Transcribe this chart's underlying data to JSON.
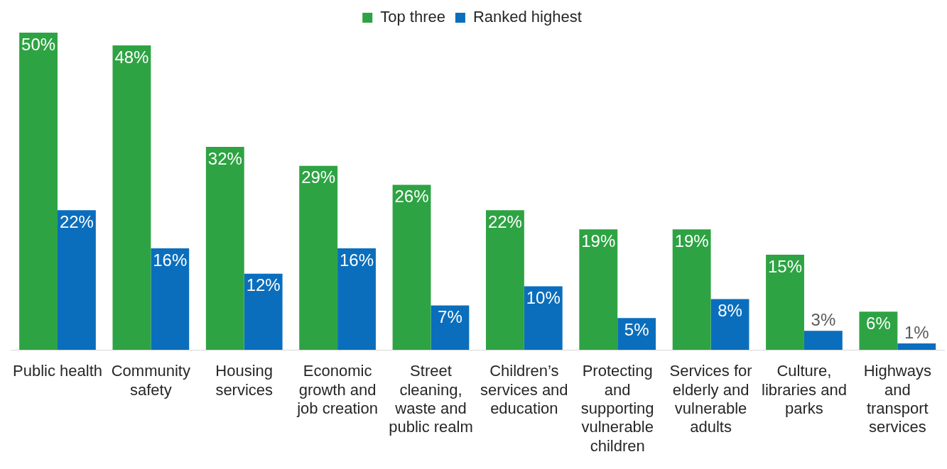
{
  "chart_data": {
    "type": "bar",
    "categories": [
      "Public health",
      "Community safety",
      "Housing services",
      "Economic growth and job creation",
      "Street cleaning, waste and public realm",
      "Children’s services and education",
      "Protecting and supporting vulnerable children",
      "Services for elderly and vulnerable adults",
      "Culture, libraries and parks",
      "Highways and transport services"
    ],
    "series": [
      {
        "name": "Top three",
        "color": "#2ea343",
        "values": [
          50,
          48,
          32,
          29,
          26,
          22,
          19,
          19,
          15,
          6
        ],
        "value_labels": [
          "50%",
          "48%",
          "32%",
          "29%",
          "26%",
          "22%",
          "19%",
          "19%",
          "15%",
          "6%"
        ]
      },
      {
        "name": "Ranked highest",
        "color": "#0a6ebd",
        "values": [
          22,
          16,
          12,
          16,
          7,
          10,
          5,
          8,
          3,
          1
        ],
        "value_labels": [
          "22%",
          "16%",
          "12%",
          "16%",
          "7%",
          "10%",
          "5%",
          "8%",
          "3%",
          "1%"
        ]
      }
    ],
    "legend": "top",
    "grid": false
  }
}
